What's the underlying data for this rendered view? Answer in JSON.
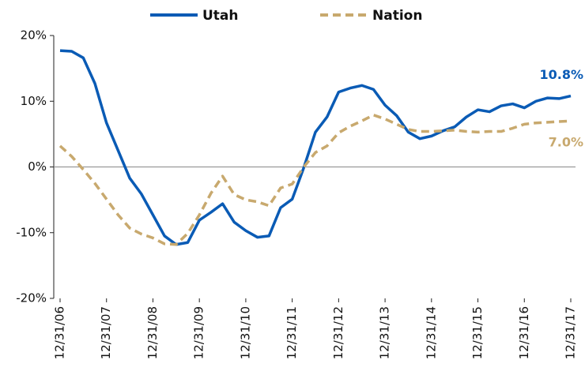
{
  "chart_data": {
    "type": "line",
    "categories": [
      "12/31/06",
      null,
      null,
      null,
      "12/31/07",
      null,
      null,
      null,
      "12/31/08",
      null,
      null,
      null,
      "12/31/09",
      null,
      null,
      null,
      "12/31/10",
      null,
      null,
      null,
      "12/31/11",
      null,
      null,
      null,
      "12/31/12",
      null,
      null,
      null,
      "12/31/13",
      null,
      null,
      null,
      "12/31/14",
      null,
      null,
      null,
      "12/31/15",
      null,
      null,
      null,
      "12/31/16",
      null,
      null,
      null,
      "12/31/17"
    ],
    "series": [
      {
        "name": "Utah",
        "color": "#0a5bb5",
        "style": "solid",
        "values": [
          17.7,
          17.6,
          16.6,
          12.7,
          6.7,
          2.5,
          -1.7,
          -4.1,
          -7.3,
          -10.5,
          -11.8,
          -11.5,
          -8.1,
          -6.9,
          -5.6,
          -8.4,
          -9.7,
          -10.7,
          -10.5,
          -6.2,
          -4.9,
          -0.1,
          5.3,
          7.6,
          11.4,
          12.0,
          12.4,
          11.8,
          9.4,
          7.8,
          5.3,
          4.3,
          4.7,
          5.5,
          6.1,
          7.6,
          8.7,
          8.4,
          9.3,
          9.6,
          9.0,
          10.0,
          10.5,
          10.4,
          10.8
        ],
        "value_labels": [
          null,
          null,
          null,
          null,
          null,
          null,
          null,
          null,
          null,
          null,
          null,
          null,
          null,
          null,
          null,
          null,
          null,
          null,
          null,
          null,
          null,
          null,
          null,
          null,
          null,
          null,
          null,
          null,
          null,
          null,
          null,
          null,
          null,
          null,
          null,
          null,
          null,
          null,
          null,
          null,
          null,
          null,
          null,
          null,
          "10.8%"
        ]
      },
      {
        "name": "Nation",
        "color": "#c8a96e",
        "style": "dashed",
        "values": [
          3.2,
          1.6,
          -0.4,
          -2.5,
          -4.9,
          -7.3,
          -9.3,
          -10.2,
          -10.8,
          -11.7,
          -11.8,
          -10.1,
          -7.3,
          -4.0,
          -1.4,
          -4.2,
          -5.0,
          -5.3,
          -5.9,
          -3.2,
          -2.6,
          0.0,
          2.2,
          3.2,
          5.2,
          6.2,
          7.0,
          7.9,
          7.3,
          6.5,
          5.7,
          5.4,
          5.4,
          5.5,
          5.6,
          5.4,
          5.3,
          5.4,
          5.4,
          5.9,
          6.5,
          6.7,
          6.8,
          6.9,
          7.0
        ],
        "value_labels": [
          null,
          null,
          null,
          null,
          null,
          null,
          null,
          null,
          null,
          null,
          null,
          null,
          null,
          null,
          null,
          null,
          null,
          null,
          null,
          null,
          null,
          null,
          null,
          null,
          null,
          null,
          null,
          null,
          null,
          null,
          null,
          null,
          null,
          null,
          null,
          null,
          null,
          null,
          null,
          null,
          null,
          null,
          null,
          null,
          "7.0%"
        ]
      }
    ],
    "ylim": [
      -20,
      20
    ],
    "yticks": [
      {
        "value": -20,
        "label": "-20%"
      },
      {
        "value": -10,
        "label": "-10%"
      },
      {
        "value": 0,
        "label": "0%"
      },
      {
        "value": 10,
        "label": "10%"
      },
      {
        "value": 20,
        "label": "20%"
      }
    ],
    "legend": "top"
  }
}
